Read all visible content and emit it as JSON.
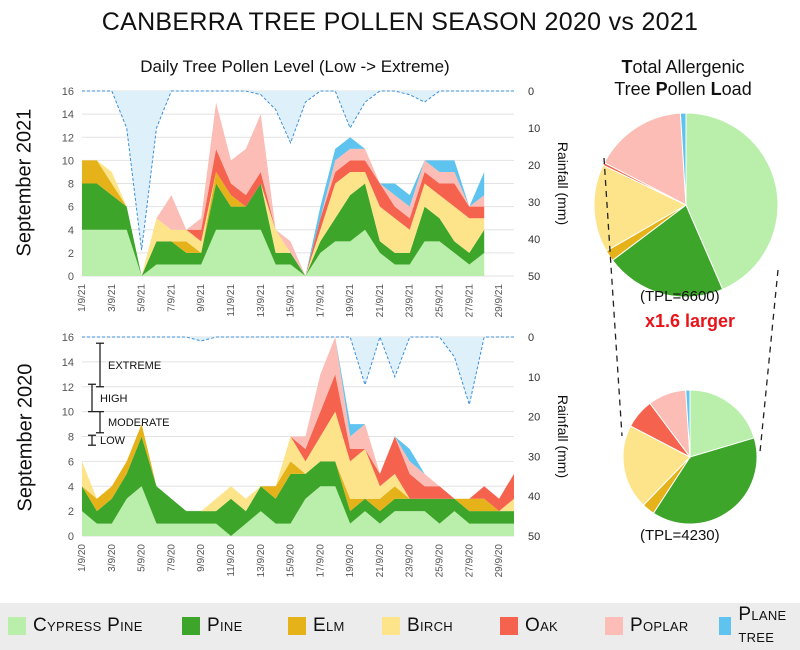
{
  "title": "CANBERRA TREE POLLEN SEASON 2020 vs 2021",
  "subtitle": "Daily Tree Pollen Level (Low -> Extreme)",
  "pie_title_line1_b": "T",
  "pie_title_line1_rest": "otal Allergenic",
  "pie_title_line2_a": "Tree ",
  "pie_title_line2_b": "P",
  "pie_title_line2_c": "ollen ",
  "pie_title_line2_d": "L",
  "pie_title_line2_e": "oad",
  "panel_2021_label": "September 2021",
  "panel_2020_label": "September 2020",
  "rainfall_label": "Rainfall (mm)",
  "tpl_2021": "(TPL=6600)",
  "tpl_2020": "(TPL=4230)",
  "ratio_text": "x1.6 larger",
  "levels": [
    "EXTREME",
    "HIGH",
    "MODERATE",
    "LOW"
  ],
  "colors": {
    "Cypress Pine": "#b9efab",
    "Pine": "#3ea52b",
    "Elm": "#e5b21a",
    "Birch": "#fde48a",
    "Oak": "#f5634f",
    "Poplar": "#fbbdb5",
    "Plane tree": "#5ec3ee",
    "Rain": "#dcf0fb",
    "RainLine": "#3b8fd9"
  },
  "legend": [
    "Cypress Pine",
    "Pine",
    "Elm",
    "Birch",
    "Oak",
    "Poplar",
    "Plane tree"
  ],
  "chart_data": [
    {
      "type": "area",
      "title": "September 2021",
      "x_tick_labels": [
        "1/9/21",
        "3/9/21",
        "5/9/21",
        "7/9/21",
        "9/9/21",
        "11/9/21",
        "13/9/21",
        "15/9/21",
        "17/9/21",
        "19/9/21",
        "21/9/21",
        "23/9/21",
        "25/9/21",
        "27/9/21",
        "29/9/21"
      ],
      "x_days": [
        1,
        2,
        3,
        4,
        5,
        6,
        7,
        8,
        9,
        10,
        11,
        12,
        13,
        14,
        15,
        16,
        17,
        18,
        19,
        20,
        21,
        22,
        23,
        24,
        25,
        26,
        27,
        28
      ],
      "ylim": [
        0,
        16
      ],
      "y_ticks": [
        0,
        2,
        4,
        6,
        8,
        10,
        12,
        14,
        16
      ],
      "y2label": "Rainfall (mm)",
      "y2lim": [
        0,
        50
      ],
      "y2_ticks": [
        0,
        10,
        20,
        30,
        40,
        50
      ],
      "series": [
        {
          "name": "Cypress Pine",
          "values": [
            4,
            4,
            4,
            4,
            0,
            1,
            1,
            1,
            1,
            4,
            4,
            4,
            4,
            1,
            1,
            0,
            2,
            3,
            3,
            4,
            2,
            1,
            1,
            3,
            3,
            2,
            1,
            2
          ]
        },
        {
          "name": "Pine",
          "values": [
            4,
            4,
            3,
            2,
            0,
            2,
            2,
            1,
            1,
            4,
            2,
            2,
            4,
            1,
            1,
            0,
            1,
            2,
            4,
            4,
            1,
            1,
            1,
            3,
            2,
            1,
            1,
            2
          ]
        },
        {
          "name": "Elm",
          "values": [
            2,
            2,
            1,
            0,
            0,
            0,
            0,
            1,
            0,
            1,
            1,
            0,
            0,
            0,
            0,
            0,
            0,
            0,
            0,
            0,
            0,
            0,
            0,
            0,
            0,
            0,
            0,
            0
          ]
        },
        {
          "name": "Birch",
          "values": [
            0,
            0,
            1,
            0,
            0,
            2,
            1,
            1,
            1,
            0,
            0,
            0,
            0,
            2,
            0,
            0,
            1,
            3,
            2,
            1,
            3,
            3,
            2,
            2,
            2,
            3,
            3,
            1
          ]
        },
        {
          "name": "Oak",
          "values": [
            0,
            0,
            0,
            0,
            0,
            0,
            0,
            0,
            1,
            2,
            1,
            1,
            1,
            0,
            0,
            0,
            1,
            1,
            1,
            1,
            2,
            1,
            1,
            1,
            1,
            2,
            1,
            1
          ]
        },
        {
          "name": "Poplar",
          "values": [
            0,
            0,
            0,
            0,
            0,
            0,
            3,
            0,
            1,
            4,
            2,
            4,
            5,
            0,
            1,
            0,
            0,
            1,
            1,
            1,
            0,
            1,
            1,
            1,
            1,
            1,
            0,
            1
          ]
        },
        {
          "name": "Plane tree",
          "values": [
            0,
            0,
            0,
            0,
            0,
            0,
            0,
            0,
            0,
            0,
            0,
            0,
            0,
            0,
            0,
            0,
            1,
            1,
            1,
            0,
            0,
            1,
            1,
            0,
            1,
            1,
            0,
            2
          ]
        }
      ],
      "rainfall": {
        "x": [
          1,
          2,
          3,
          4,
          5,
          6,
          7,
          8,
          9,
          10,
          11,
          12,
          13,
          14,
          15,
          16,
          17,
          18,
          19,
          20,
          21,
          22,
          23,
          24,
          25,
          26,
          27,
          28,
          29,
          30
        ],
        "values": [
          0,
          0,
          0,
          10,
          43,
          10,
          0,
          0,
          0,
          0,
          0,
          0,
          1,
          5,
          14,
          3,
          0,
          0,
          10,
          3,
          0,
          0,
          1,
          3,
          0,
          0,
          0,
          0,
          0,
          0
        ]
      },
      "level_markers": false
    },
    {
      "type": "area",
      "title": "September 2020",
      "x_tick_labels": [
        "1/9/20",
        "3/9/20",
        "5/9/20",
        "7/9/20",
        "9/9/20",
        "11/9/20",
        "13/9/20",
        "15/9/20",
        "17/9/20",
        "19/9/20",
        "21/9/20",
        "23/9/20",
        "25/9/20",
        "27/9/20",
        "29/9/20"
      ],
      "x_days": [
        1,
        2,
        3,
        4,
        5,
        6,
        7,
        8,
        9,
        10,
        11,
        12,
        13,
        14,
        15,
        16,
        17,
        18,
        19,
        20,
        21,
        22,
        23,
        24,
        25,
        26,
        27,
        28,
        29,
        30
      ],
      "ylim": [
        0,
        16
      ],
      "y_ticks": [
        0,
        2,
        4,
        6,
        8,
        10,
        12,
        14,
        16
      ],
      "y2label": "Rainfall (mm)",
      "y2lim": [
        0,
        50
      ],
      "y2_ticks": [
        0,
        10,
        20,
        30,
        40,
        50
      ],
      "series": [
        {
          "name": "Cypress Pine",
          "values": [
            2,
            1,
            1,
            3,
            4,
            1,
            1,
            1,
            1,
            1,
            0,
            1,
            2,
            1,
            1,
            3,
            4,
            4,
            1,
            2,
            1,
            2,
            2,
            2,
            1,
            2,
            1,
            1,
            1,
            1
          ]
        },
        {
          "name": "Pine",
          "values": [
            2,
            1,
            2,
            2,
            4,
            3,
            2,
            1,
            1,
            1,
            3,
            1,
            2,
            2,
            4,
            2,
            2,
            2,
            1,
            1,
            1,
            1,
            1,
            1,
            2,
            1,
            1,
            1,
            1,
            1
          ]
        },
        {
          "name": "Elm",
          "values": [
            0,
            1,
            1,
            1,
            1,
            0,
            0,
            0,
            0,
            0,
            0,
            0,
            0,
            1,
            1,
            0,
            0,
            0,
            1,
            0,
            1,
            1,
            0,
            0,
            0,
            0,
            1,
            1,
            0,
            0
          ]
        },
        {
          "name": "Birch",
          "values": [
            2,
            0,
            0,
            0,
            0,
            0,
            0,
            0,
            0,
            1,
            1,
            1,
            0,
            0,
            2,
            1,
            2,
            4,
            3,
            4,
            1,
            1,
            0,
            0,
            0,
            0,
            0,
            0,
            0,
            1
          ]
        },
        {
          "name": "Oak",
          "values": [
            0,
            0,
            0,
            0,
            0,
            0,
            0,
            0,
            0,
            0,
            0,
            0,
            0,
            0,
            0,
            1,
            2,
            3,
            1,
            0,
            1,
            3,
            2,
            1,
            1,
            0,
            0,
            1,
            1,
            2
          ]
        },
        {
          "name": "Poplar",
          "values": [
            0,
            0,
            0,
            0,
            0,
            0,
            0,
            0,
            0,
            0,
            0,
            0,
            0,
            0,
            0,
            1,
            3,
            3,
            1,
            2,
            0,
            0,
            1,
            1,
            0,
            0,
            0,
            0,
            0,
            0
          ]
        },
        {
          "name": "Plane tree",
          "values": [
            0,
            0,
            0,
            0,
            0,
            0,
            0,
            0,
            0,
            0,
            0,
            0,
            0,
            0,
            0,
            0,
            0,
            0,
            1,
            0,
            0,
            0,
            1,
            0,
            0,
            0,
            0,
            0,
            0,
            0
          ]
        }
      ],
      "rainfall": {
        "x": [
          1,
          2,
          3,
          4,
          5,
          6,
          7,
          8,
          9,
          10,
          11,
          12,
          13,
          14,
          15,
          16,
          17,
          18,
          19,
          20,
          21,
          22,
          23,
          24,
          25,
          26,
          27,
          28,
          29,
          30
        ],
        "values": [
          0,
          0,
          0,
          0,
          0,
          0,
          0,
          0,
          1,
          0,
          0,
          0,
          0,
          0,
          0,
          0,
          0,
          0,
          0,
          12,
          0,
          10,
          0,
          0,
          0,
          5,
          17,
          0,
          0,
          0
        ]
      },
      "level_markers": true
    },
    {
      "type": "pie",
      "title": "Total Allergenic Tree Pollen Load 2021",
      "total": 6600,
      "labels": [
        "Cypress Pine",
        "Pine",
        "Elm",
        "Birch",
        "Oak",
        "Poplar",
        "Plane tree"
      ],
      "values": [
        45,
        22,
        2,
        16,
        0.5,
        17,
        1
      ]
    },
    {
      "type": "pie",
      "title": "Total Allergenic Tree Pollen Load 2020",
      "total": 4230,
      "labels": [
        "Cypress Pine",
        "Pine",
        "Elm",
        "Birch",
        "Oak",
        "Poplar",
        "Plane tree"
      ],
      "values": [
        20,
        38,
        3,
        20,
        7,
        9,
        1
      ]
    }
  ]
}
